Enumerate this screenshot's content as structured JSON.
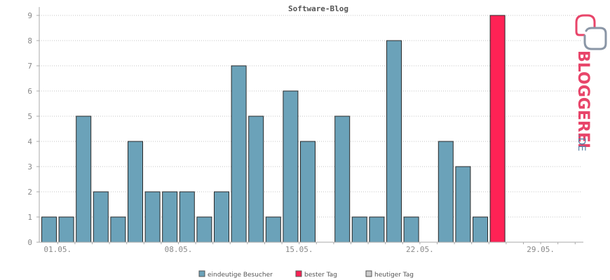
{
  "chart_data": {
    "type": "bar",
    "title": "Software-Blog",
    "xlabel": "",
    "ylabel": "",
    "ylim": [
      0,
      9
    ],
    "yticks": [
      0,
      1,
      2,
      3,
      4,
      5,
      6,
      7,
      8,
      9
    ],
    "grid": true,
    "legend_position": "bottom-center",
    "x_tick_labels": [
      {
        "day": 1,
        "label": "01.05."
      },
      {
        "day": 8,
        "label": "08.05."
      },
      {
        "day": 15,
        "label": "15.05."
      },
      {
        "day": 22,
        "label": "22.05."
      },
      {
        "day": 29,
        "label": "29.05."
      }
    ],
    "series": [
      {
        "name": "eindeutige Besucher",
        "color": "#6ba2b9",
        "points": [
          {
            "day": 1,
            "value": 1
          },
          {
            "day": 2,
            "value": 1
          },
          {
            "day": 3,
            "value": 5
          },
          {
            "day": 4,
            "value": 2
          },
          {
            "day": 5,
            "value": 1
          },
          {
            "day": 6,
            "value": 4
          },
          {
            "day": 7,
            "value": 2
          },
          {
            "day": 8,
            "value": 2
          },
          {
            "day": 9,
            "value": 2
          },
          {
            "day": 10,
            "value": 1
          },
          {
            "day": 11,
            "value": 2
          },
          {
            "day": 12,
            "value": 7
          },
          {
            "day": 13,
            "value": 5
          },
          {
            "day": 14,
            "value": 1
          },
          {
            "day": 15,
            "value": 6
          },
          {
            "day": 16,
            "value": 4
          },
          {
            "day": 17,
            "value": 0
          },
          {
            "day": 18,
            "value": 5
          },
          {
            "day": 19,
            "value": 1
          },
          {
            "day": 20,
            "value": 1
          },
          {
            "day": 21,
            "value": 8
          },
          {
            "day": 22,
            "value": 1
          },
          {
            "day": 23,
            "value": 0
          },
          {
            "day": 24,
            "value": 4
          },
          {
            "day": 25,
            "value": 3
          },
          {
            "day": 26,
            "value": 1
          }
        ]
      },
      {
        "name": "bester Tag",
        "color": "#ff2255",
        "points": [
          {
            "day": 27,
            "value": 9
          }
        ]
      },
      {
        "name": "heutiger Tag",
        "color": "#cccccc",
        "points": []
      }
    ]
  },
  "logo": {
    "text_main": "BLOGGEREI",
    "text_suffix": ".DE",
    "colors": {
      "pink": "#e8456a",
      "grey": "#8a96a6",
      "blue": "#5b7fa4"
    }
  }
}
